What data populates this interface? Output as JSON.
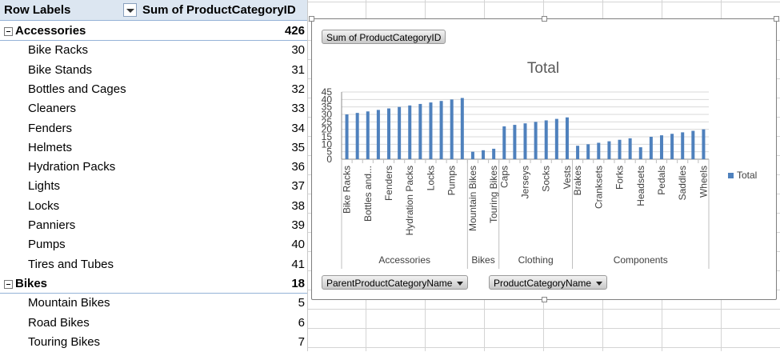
{
  "pivot": {
    "header": {
      "row_labels": "Row Labels",
      "value_header": "Sum of ProductCategoryID"
    },
    "rows": [
      {
        "type": "group",
        "label": "Accessories",
        "value": "426"
      },
      {
        "type": "item",
        "label": "Bike Racks",
        "value": "30"
      },
      {
        "type": "item",
        "label": "Bike Stands",
        "value": "31"
      },
      {
        "type": "item",
        "label": "Bottles and Cages",
        "value": "32"
      },
      {
        "type": "item",
        "label": "Cleaners",
        "value": "33"
      },
      {
        "type": "item",
        "label": "Fenders",
        "value": "34"
      },
      {
        "type": "item",
        "label": "Helmets",
        "value": "35"
      },
      {
        "type": "item",
        "label": "Hydration Packs",
        "value": "36"
      },
      {
        "type": "item",
        "label": "Lights",
        "value": "37"
      },
      {
        "type": "item",
        "label": "Locks",
        "value": "38"
      },
      {
        "type": "item",
        "label": "Panniers",
        "value": "39"
      },
      {
        "type": "item",
        "label": "Pumps",
        "value": "40"
      },
      {
        "type": "item",
        "label": "Tires and Tubes",
        "value": "41"
      },
      {
        "type": "group",
        "label": "Bikes",
        "value": "18"
      },
      {
        "type": "item",
        "label": "Mountain Bikes",
        "value": "5"
      },
      {
        "type": "item",
        "label": "Road Bikes",
        "value": "6"
      },
      {
        "type": "item",
        "label": "Touring Bikes",
        "value": "7"
      }
    ]
  },
  "chart_buttons": {
    "value_field": "Sum of ProductCategoryID",
    "axis_field_1": "ParentProductCategoryName",
    "axis_field_2": "ProductCategoryName"
  },
  "chart_data": {
    "type": "bar",
    "title": "Total",
    "ylim": [
      0,
      45
    ],
    "yticks": [
      "0",
      "5",
      "10",
      "15",
      "20",
      "25",
      "30",
      "35",
      "40",
      "45"
    ],
    "grid": true,
    "legend_position": "right",
    "series": [
      {
        "name": "Total",
        "color": "#4f81bd"
      }
    ],
    "groups": [
      {
        "name": "Accessories",
        "items": [
          {
            "value": 30,
            "label": "Bike Racks"
          },
          {
            "value": 31,
            "label": ""
          },
          {
            "value": 32,
            "label": "Bottles and..."
          },
          {
            "value": 33,
            "label": ""
          },
          {
            "value": 34,
            "label": "Fenders"
          },
          {
            "value": 35,
            "label": ""
          },
          {
            "value": 36,
            "label": "Hydration Packs"
          },
          {
            "value": 37,
            "label": ""
          },
          {
            "value": 38,
            "label": "Locks"
          },
          {
            "value": 39,
            "label": ""
          },
          {
            "value": 40,
            "label": "Pumps"
          },
          {
            "value": 41,
            "label": ""
          }
        ]
      },
      {
        "name": "Bikes",
        "items": [
          {
            "value": 5,
            "label": "Mountain Bikes"
          },
          {
            "value": 6,
            "label": ""
          },
          {
            "value": 7,
            "label": "Touring Bikes"
          }
        ]
      },
      {
        "name": "Clothing",
        "items": [
          {
            "value": 22,
            "label": "Caps"
          },
          {
            "value": 23,
            "label": ""
          },
          {
            "value": 24,
            "label": "Jerseys"
          },
          {
            "value": 25,
            "label": ""
          },
          {
            "value": 26,
            "label": "Socks"
          },
          {
            "value": 27,
            "label": ""
          },
          {
            "value": 28,
            "label": "Vests"
          }
        ]
      },
      {
        "name": "Components",
        "items": [
          {
            "value": 9,
            "label": "Brakes"
          },
          {
            "value": 10,
            "label": ""
          },
          {
            "value": 11,
            "label": "Cranksets"
          },
          {
            "value": 12,
            "label": ""
          },
          {
            "value": 13,
            "label": "Forks"
          },
          {
            "value": 14,
            "label": ""
          },
          {
            "value": 8,
            "label": "Headsets"
          },
          {
            "value": 15,
            "label": ""
          },
          {
            "value": 16,
            "label": "Pedals"
          },
          {
            "value": 17,
            "label": ""
          },
          {
            "value": 18,
            "label": "Saddles"
          },
          {
            "value": 19,
            "label": ""
          },
          {
            "value": 20,
            "label": "Wheels"
          }
        ]
      }
    ]
  }
}
